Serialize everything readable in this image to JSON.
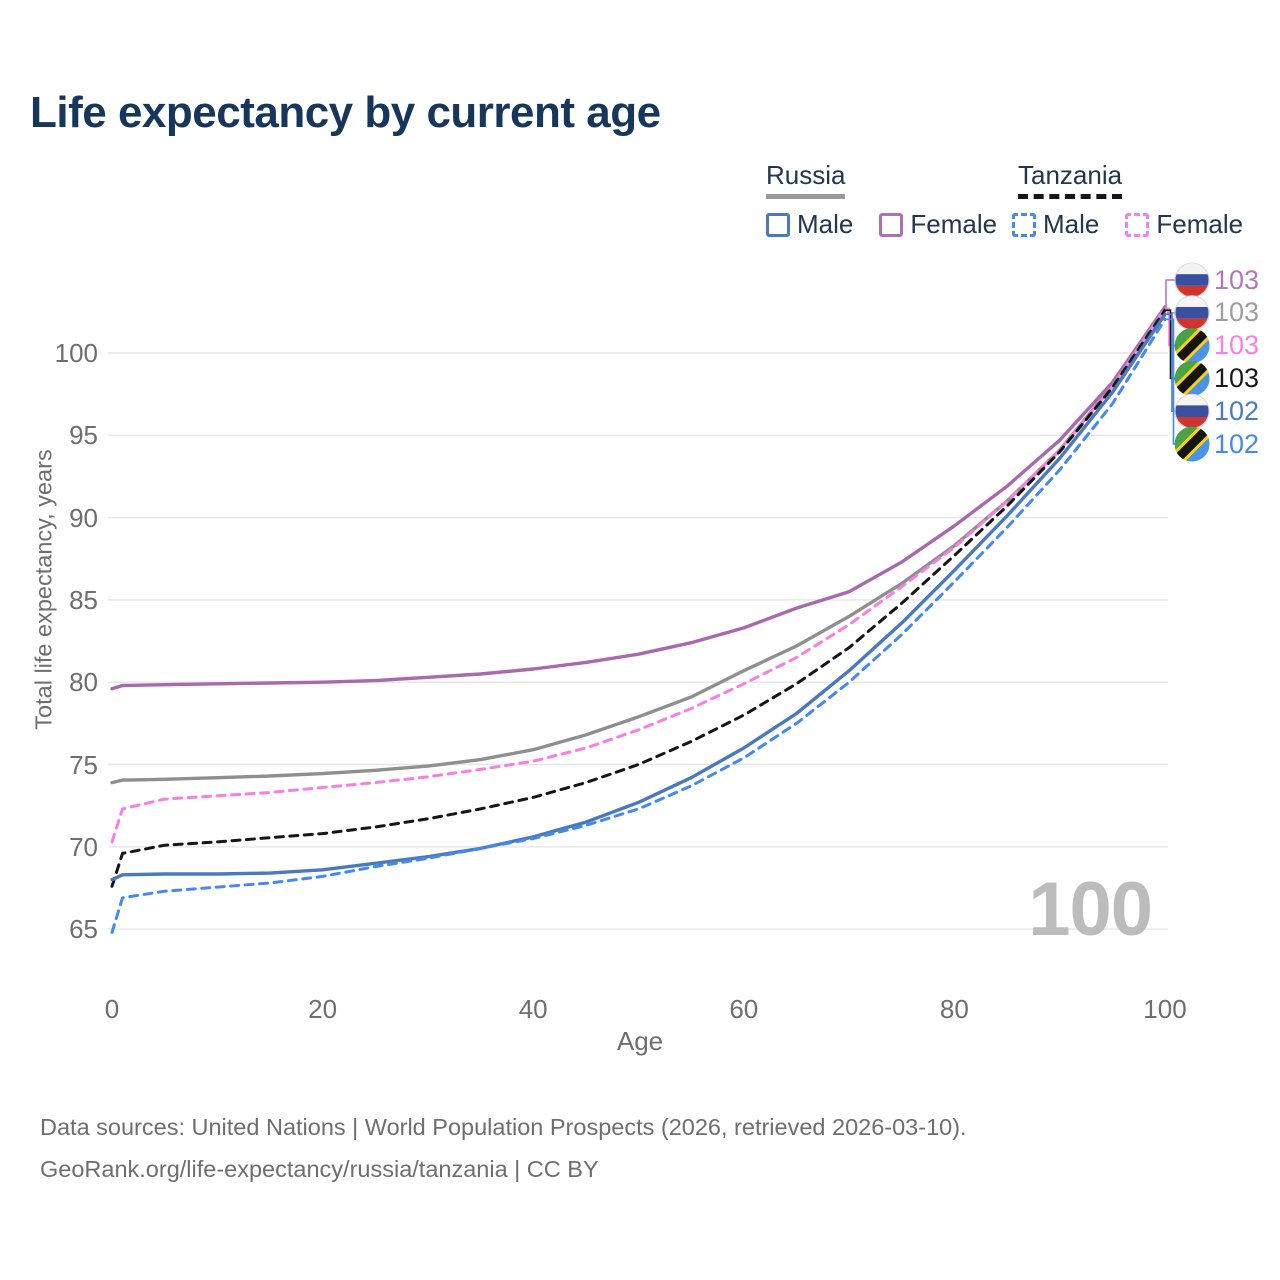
{
  "title": "Life expectancy by current age",
  "legend": {
    "russia": {
      "label": "Russia",
      "male": "Male",
      "female": "Female"
    },
    "tanzania": {
      "label": "Tanzania",
      "male": "Male",
      "female": "Female"
    }
  },
  "watermark": "100",
  "footer": {
    "line1": "Data sources: United Nations | World Population Prospects (2026, retrieved 2026-03-10).",
    "line2": "GeoRank.org/life-expectancy/russia/tanzania | CC BY"
  },
  "flag_colors": {
    "russia": {
      "white": "#f4f4f4",
      "blue": "#3a4f9f",
      "red": "#d0342c",
      "edge": "#dcdcdc"
    },
    "tanzania": {
      "green": "#4ba146",
      "blue": "#4a93e8",
      "yellow": "#fbd116",
      "black": "#141414"
    }
  },
  "chart_data": {
    "type": "line",
    "title": "Life expectancy by current age",
    "xlabel": "Age",
    "ylabel": "Total life expectancy, years",
    "xlim": [
      0,
      100
    ],
    "ylim": [
      63.5,
      104
    ],
    "x_ticks": [
      0,
      20,
      40,
      60,
      80,
      100
    ],
    "y_ticks": [
      65,
      70,
      75,
      80,
      85,
      90,
      95,
      100
    ],
    "grid": "horizontal",
    "legend_position": "top-right",
    "ages": [
      0,
      1,
      5,
      10,
      15,
      20,
      25,
      30,
      35,
      40,
      45,
      50,
      55,
      60,
      65,
      70,
      75,
      80,
      85,
      90,
      95,
      100
    ],
    "series": [
      {
        "name": "Russia Female",
        "country": "Russia",
        "sex": "Female",
        "line": "solid",
        "color": "#a869ae",
        "label_color": "#b279b8",
        "flag": "russia",
        "end_label": "103",
        "values": [
          79.6,
          79.8,
          79.85,
          79.9,
          79.95,
          80.0,
          80.1,
          80.3,
          80.5,
          80.8,
          81.2,
          81.7,
          82.4,
          83.3,
          84.5,
          85.5,
          87.3,
          89.5,
          91.9,
          94.7,
          98.2,
          102.8
        ]
      },
      {
        "name": "Russia",
        "country": "Russia",
        "sex": "Both",
        "line": "solid",
        "color": "#8f8f8f",
        "label_color": "#9e9e9e",
        "flag": "russia",
        "end_label": "103",
        "values": [
          73.9,
          74.05,
          74.1,
          74.2,
          74.3,
          74.45,
          74.65,
          74.9,
          75.3,
          75.9,
          76.8,
          77.9,
          79.1,
          80.7,
          82.2,
          84.0,
          86.0,
          88.3,
          91.0,
          94.1,
          98.0,
          102.7
        ]
      },
      {
        "name": "Tanzania Female",
        "country": "Tanzania",
        "sex": "Female",
        "line": "dashed",
        "color": "#f87fe1",
        "label_color": "#fb7fe3",
        "flag": "tanzania",
        "end_label": "103",
        "values": [
          70.3,
          72.3,
          72.9,
          73.1,
          73.3,
          73.6,
          73.9,
          74.25,
          74.7,
          75.2,
          76.0,
          77.1,
          78.4,
          79.9,
          81.5,
          83.5,
          85.8,
          88.2,
          91.0,
          94.1,
          97.95,
          102.7
        ]
      },
      {
        "name": "Tanzania",
        "country": "Tanzania",
        "sex": "Both",
        "line": "dashed",
        "color": "#161616",
        "label_color": "#1a1a1a",
        "flag": "tanzania",
        "end_label": "103",
        "values": [
          67.6,
          69.6,
          70.1,
          70.3,
          70.55,
          70.8,
          71.2,
          71.7,
          72.3,
          73.0,
          73.9,
          75.0,
          76.4,
          78.0,
          79.9,
          82.1,
          84.8,
          87.7,
          90.7,
          94.0,
          97.9,
          102.6
        ]
      },
      {
        "name": "Russia Male",
        "country": "Russia",
        "sex": "Male",
        "line": "solid",
        "color": "#4a7abc",
        "label_color": "#4a7cc4",
        "flag": "russia",
        "end_label": "102",
        "values": [
          68.0,
          68.3,
          68.35,
          68.35,
          68.4,
          68.6,
          69.0,
          69.4,
          69.9,
          70.6,
          71.5,
          72.7,
          74.2,
          76.0,
          78.1,
          80.7,
          83.6,
          86.8,
          90.1,
          93.6,
          97.6,
          102.35
        ]
      },
      {
        "name": "Tanzania Male",
        "country": "Tanzania",
        "sex": "Male",
        "line": "dashed",
        "color": "#4489f1",
        "label_color": "#4489f1",
        "flag": "tanzania",
        "end_label": "102",
        "values": [
          64.8,
          66.9,
          67.3,
          67.55,
          67.8,
          68.2,
          68.8,
          69.3,
          69.9,
          70.5,
          71.3,
          72.3,
          73.7,
          75.4,
          77.5,
          80.0,
          82.9,
          86.1,
          89.4,
          92.9,
          96.9,
          102.05
        ]
      }
    ]
  }
}
